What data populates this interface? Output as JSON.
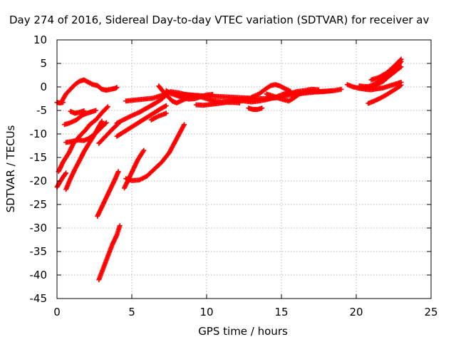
{
  "chart_data": {
    "type": "scatter",
    "title": "Day 274 of 2016, Sidereal Day-to-day VTEC variation (SDTVAR) for receiver av",
    "xlabel": "GPS time / hours",
    "ylabel": "SDTVAR / TECUs",
    "xlim": [
      0,
      25
    ],
    "ylim": [
      -45,
      10
    ],
    "xticks": [
      0,
      5,
      10,
      15,
      20,
      25
    ],
    "yticks": [
      10,
      5,
      0,
      -5,
      -10,
      -15,
      -20,
      -25,
      -30,
      -35,
      -40,
      -45
    ],
    "grid": true,
    "legend": "none",
    "marker": "plus",
    "color": "#ff0000",
    "series": [
      {
        "points": [
          [
            0.3,
            -3.2
          ],
          [
            0.6,
            -1.5
          ],
          [
            0.9,
            -0.5
          ],
          [
            1.2,
            0.5
          ],
          [
            1.5,
            1.2
          ],
          [
            1.8,
            1.5
          ],
          [
            2.1,
            1.0
          ],
          [
            2.4,
            0.5
          ],
          [
            2.7,
            0.3
          ],
          [
            3.0,
            -0.5
          ],
          [
            3.3,
            -0.7
          ],
          [
            3.6,
            -0.5
          ],
          [
            3.9,
            -0.3
          ],
          [
            4.0,
            -0.1
          ]
        ]
      },
      {
        "points": [
          [
            0,
            -3.3
          ],
          [
            0.2,
            -3.4
          ],
          [
            0.4,
            -3.3
          ]
        ]
      },
      {
        "points": [
          [
            0.5,
            -8.0
          ],
          [
            0.9,
            -7.6
          ],
          [
            1.3,
            -7.0
          ],
          [
            1.7,
            -6.0
          ],
          [
            2.0,
            -5.6
          ],
          [
            2.3,
            -5.3
          ],
          [
            2.6,
            -5.0
          ]
        ]
      },
      {
        "points": [
          [
            0.9,
            -5.2
          ],
          [
            1.2,
            -5.6
          ],
          [
            1.5,
            -5.4
          ],
          [
            1.8,
            -5.1
          ]
        ]
      },
      {
        "points": [
          [
            0.1,
            -18
          ],
          [
            0.4,
            -16
          ],
          [
            0.8,
            -14
          ],
          [
            1.1,
            -12
          ],
          [
            1.5,
            -10.5
          ],
          [
            1.9,
            -9.2
          ],
          [
            2.2,
            -8.0
          ],
          [
            2.6,
            -7.0
          ],
          [
            3.0,
            -5.5
          ],
          [
            3.4,
            -4.2
          ]
        ]
      },
      {
        "points": [
          [
            0.6,
            -11.8
          ],
          [
            1.0,
            -11.6
          ],
          [
            1.4,
            -11.3
          ],
          [
            1.8,
            -11.4
          ],
          [
            2.1,
            -11.0
          ],
          [
            2.4,
            -10.3
          ],
          [
            2.7,
            -9.5
          ],
          [
            3.0,
            -8.5
          ],
          [
            3.3,
            -7.6
          ]
        ]
      },
      {
        "points": [
          [
            0,
            -21.3
          ],
          [
            0.2,
            -20.2
          ],
          [
            0.4,
            -19.2
          ],
          [
            0.6,
            -18.3
          ]
        ]
      },
      {
        "points": [
          [
            0.6,
            -21.8
          ],
          [
            0.9,
            -19.5
          ],
          [
            1.2,
            -17.5
          ],
          [
            1.5,
            -15.7
          ],
          [
            1.8,
            -13.8
          ],
          [
            2.1,
            -12.2
          ],
          [
            2.4,
            -10.7
          ],
          [
            2.7,
            -9.0
          ],
          [
            3.0,
            -7.3
          ]
        ]
      },
      {
        "points": [
          [
            2.8,
            -12.0
          ],
          [
            3.1,
            -11.0
          ],
          [
            3.4,
            -10.0
          ],
          [
            3.7,
            -9.0
          ],
          [
            4.0,
            -8.1
          ],
          [
            4.2,
            -7.5
          ]
        ]
      },
      {
        "points": [
          [
            4.0,
            -10.5
          ],
          [
            4.5,
            -9.5
          ],
          [
            5.0,
            -8.5
          ],
          [
            5.5,
            -7.5
          ],
          [
            6.0,
            -6.5
          ],
          [
            6.5,
            -5.5
          ],
          [
            7.0,
            -4.5
          ],
          [
            7.3,
            -4.0
          ]
        ]
      },
      {
        "points": [
          [
            4.0,
            -7.7
          ],
          [
            4.5,
            -6.9
          ],
          [
            5.0,
            -6.1
          ],
          [
            5.5,
            -5.4
          ],
          [
            6.0,
            -4.5
          ],
          [
            6.5,
            -3.6
          ],
          [
            7.0,
            -2.6
          ],
          [
            7.2,
            -2.0
          ]
        ]
      },
      {
        "points": [
          [
            6.3,
            -7.0
          ],
          [
            6.8,
            -6.2
          ],
          [
            7.3,
            -5.6
          ]
        ]
      },
      {
        "points": [
          [
            2.7,
            -27.5
          ],
          [
            3.0,
            -25.5
          ],
          [
            3.3,
            -23.5
          ],
          [
            3.6,
            -21.5
          ],
          [
            3.9,
            -19.5
          ],
          [
            4.1,
            -18.0
          ]
        ]
      },
      {
        "points": [
          [
            2.8,
            -41.0
          ],
          [
            3.1,
            -38.5
          ],
          [
            3.4,
            -36.0
          ],
          [
            3.7,
            -33.5
          ],
          [
            4.0,
            -31.5
          ],
          [
            4.2,
            -29.5
          ]
        ]
      },
      {
        "points": [
          [
            4.5,
            -21.5
          ],
          [
            4.8,
            -19.5
          ],
          [
            5.1,
            -17.5
          ],
          [
            5.4,
            -15.5
          ],
          [
            5.8,
            -13.5
          ]
        ]
      },
      {
        "points": [
          [
            4.6,
            -19.5
          ],
          [
            5.0,
            -19.9
          ],
          [
            5.5,
            -19.8
          ],
          [
            6.0,
            -19.0
          ],
          [
            6.5,
            -17.5
          ],
          [
            7.0,
            -16.0
          ],
          [
            7.5,
            -14.0
          ],
          [
            8.0,
            -11.0
          ],
          [
            8.5,
            -8.0
          ]
        ]
      },
      {
        "points": [
          [
            4.6,
            -3.0
          ],
          [
            5.2,
            -2.8
          ],
          [
            5.8,
            -2.6
          ],
          [
            6.4,
            -2.4
          ],
          [
            7.0,
            -1.8
          ],
          [
            7.6,
            -1.0
          ],
          [
            8.2,
            -1.3
          ],
          [
            8.8,
            -1.8
          ],
          [
            9.4,
            -1.8
          ],
          [
            10.0,
            -2.0
          ],
          [
            10.6,
            -2.0
          ],
          [
            11.2,
            -2.1
          ],
          [
            11.8,
            -2.2
          ],
          [
            12.4,
            -2.3
          ],
          [
            13.0,
            -2.4
          ],
          [
            13.6,
            -2.5
          ],
          [
            14.2,
            -2.4
          ],
          [
            14.8,
            -2.3
          ],
          [
            15.4,
            -1.8
          ],
          [
            16.0,
            -1.5
          ],
          [
            16.6,
            -1.3
          ],
          [
            17.2,
            -1.1
          ],
          [
            17.8,
            -1.0
          ],
          [
            18.4,
            -0.8
          ]
        ]
      },
      {
        "points": [
          [
            6.8,
            0.2
          ],
          [
            7.1,
            -1.0
          ],
          [
            7.4,
            -2.0
          ],
          [
            7.7,
            -3.0
          ],
          [
            8.0,
            -3.4
          ],
          [
            8.4,
            -2.8
          ],
          [
            8.8,
            -2.2
          ]
        ]
      },
      {
        "points": [
          [
            8.0,
            -1.8
          ],
          [
            8.5,
            -1.6
          ],
          [
            9.0,
            -1.7
          ],
          [
            9.5,
            -2.0
          ],
          [
            10.0,
            -2.5
          ],
          [
            10.5,
            -3.0
          ],
          [
            11.0,
            -3.2
          ],
          [
            11.5,
            -3.0
          ],
          [
            12.0,
            -2.8
          ],
          [
            12.5,
            -2.6
          ],
          [
            13.0,
            -2.5
          ]
        ]
      },
      {
        "points": [
          [
            7.3,
            -0.8
          ],
          [
            7.6,
            -1.4
          ],
          [
            8.0,
            -1.8
          ],
          [
            8.4,
            -2.3
          ],
          [
            8.8,
            -2.6
          ],
          [
            9.2,
            -2.5
          ],
          [
            9.6,
            -2.1
          ],
          [
            10.0,
            -1.7
          ],
          [
            10.4,
            -1.6
          ]
        ]
      },
      {
        "points": [
          [
            9.3,
            -3.8
          ],
          [
            9.8,
            -3.9
          ],
          [
            10.3,
            -3.7
          ],
          [
            10.8,
            -3.5
          ],
          [
            11.3,
            -3.3
          ],
          [
            11.8,
            -3.3
          ],
          [
            12.2,
            -3.4
          ]
        ]
      },
      {
        "points": [
          [
            12.0,
            -2.8
          ],
          [
            12.5,
            -3.0
          ],
          [
            13.0,
            -3.2
          ],
          [
            13.5,
            -3.0
          ],
          [
            14.0,
            -2.7
          ],
          [
            14.5,
            -2.3
          ],
          [
            15.0,
            -1.7
          ],
          [
            15.4,
            -1.2
          ]
        ]
      },
      {
        "points": [
          [
            12.8,
            -4.5
          ],
          [
            13.1,
            -4.8
          ],
          [
            13.4,
            -4.8
          ],
          [
            13.7,
            -4.5
          ]
        ]
      },
      {
        "points": [
          [
            13.0,
            -2.2
          ],
          [
            13.5,
            -1.5
          ],
          [
            14.0,
            -0.3
          ],
          [
            14.3,
            0.3
          ],
          [
            14.6,
            0.5
          ],
          [
            14.9,
            0.2
          ],
          [
            15.2,
            -0.3
          ],
          [
            15.6,
            -0.9
          ]
        ]
      },
      {
        "points": [
          [
            14.0,
            -1.5
          ],
          [
            14.5,
            -2.0
          ],
          [
            15.0,
            -2.6
          ],
          [
            15.5,
            -3.0
          ],
          [
            15.8,
            -2.4
          ],
          [
            16.2,
            -1.5
          ],
          [
            16.6,
            -1.1
          ],
          [
            17.0,
            -0.9
          ],
          [
            17.5,
            -1.0
          ],
          [
            18.0,
            -0.9
          ],
          [
            18.5,
            -0.8
          ],
          [
            19.0,
            -0.5
          ]
        ]
      },
      {
        "points": [
          [
            15.5,
            -1.5
          ],
          [
            16.0,
            -1.0
          ],
          [
            16.5,
            -0.8
          ],
          [
            17.0,
            -0.5
          ],
          [
            17.5,
            -0.6
          ]
        ]
      },
      {
        "points": [
          [
            19.4,
            0.5
          ],
          [
            19.8,
            0.0
          ],
          [
            20.2,
            -0.3
          ],
          [
            20.6,
            -0.5
          ],
          [
            21.0,
            -0.6
          ],
          [
            21.4,
            -0.4
          ],
          [
            21.8,
            -0.2
          ],
          [
            22.2,
            0.2
          ],
          [
            22.6,
            0.6
          ],
          [
            23.0,
            1.0
          ]
        ]
      },
      {
        "points": [
          [
            20.2,
            0.2
          ],
          [
            20.6,
            0.1
          ],
          [
            21.0,
            0.0
          ],
          [
            21.4,
            0.5
          ],
          [
            21.8,
            1.2
          ],
          [
            22.2,
            2.3
          ],
          [
            22.6,
            3.3
          ],
          [
            23.0,
            4.3
          ]
        ]
      },
      {
        "points": [
          [
            20.6,
            -0.2
          ],
          [
            21.0,
            0.3
          ],
          [
            21.4,
            0.9
          ],
          [
            21.8,
            1.7
          ],
          [
            22.2,
            2.8
          ],
          [
            22.6,
            4.0
          ],
          [
            23.0,
            5.4
          ]
        ]
      },
      {
        "points": [
          [
            21.0,
            1.5
          ],
          [
            21.5,
            2.0
          ],
          [
            22.0,
            2.9
          ],
          [
            22.5,
            4.3
          ],
          [
            23.0,
            5.9
          ]
        ]
      },
      {
        "points": [
          [
            20.8,
            -3.5
          ],
          [
            21.2,
            -3.0
          ],
          [
            21.6,
            -2.4
          ],
          [
            22.0,
            -1.7
          ],
          [
            22.4,
            -0.9
          ],
          [
            22.8,
            -0.1
          ],
          [
            23.0,
            0.4
          ]
        ]
      }
    ]
  }
}
